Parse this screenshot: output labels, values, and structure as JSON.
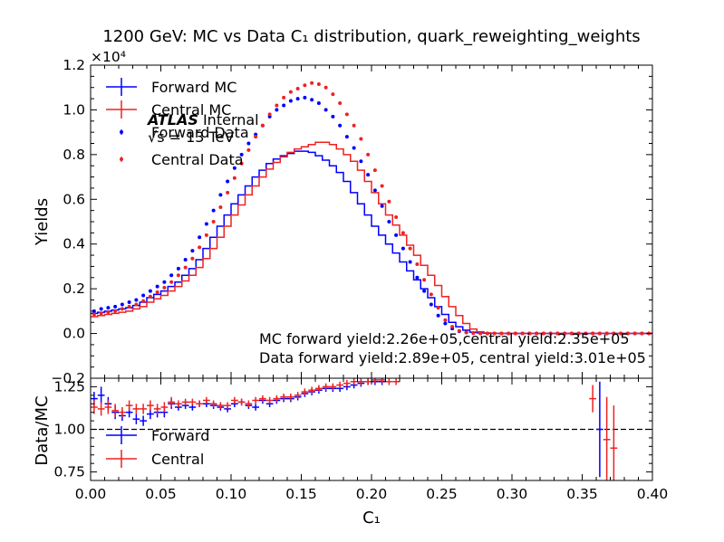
{
  "chart_data": [
    {
      "type": "line",
      "title": "1200 GeV: MC vs Data C₁ distribution, quark_reweighting_weights",
      "ylabel": "Yields",
      "y_offset_label": "×10⁴",
      "xlim": [
        0.0,
        0.4
      ],
      "ylim": [
        -2000,
        12000
      ],
      "bin_width": 0.005,
      "x_ticks": [
        "0.00",
        "0.05",
        "0.10",
        "0.15",
        "0.20",
        "0.25",
        "0.30",
        "0.35",
        "0.40"
      ],
      "y_ticks": [
        "−0.2",
        "0.0",
        "0.2",
        "0.4",
        "0.6",
        "0.8",
        "1.0",
        "1.2"
      ],
      "y_tick_values": [
        -2000,
        0,
        2000,
        4000,
        6000,
        8000,
        10000,
        12000
      ],
      "annotations": {
        "atlas_bold": "ATLAS",
        "atlas_rest": " Internal",
        "energy": "√s = 13 TeV",
        "mc_yield": "MC forward yield:2.26e+05,central yield:2.35e+05",
        "data_yield": "Data forward yield:2.89e+05, central yield:3.01e+05"
      },
      "legend_position": "upper left",
      "series": [
        {
          "name": "Forward MC",
          "style": "step",
          "color": "#0000ff",
          "values": [
            900,
            950,
            1000,
            1050,
            1100,
            1150,
            1250,
            1400,
            1600,
            1750,
            1900,
            2100,
            2300,
            2600,
            2900,
            3300,
            3800,
            4300,
            4800,
            5300,
            5800,
            6200,
            6600,
            7000,
            7300,
            7600,
            7800,
            7950,
            8050,
            8150,
            8150,
            8100,
            7950,
            7750,
            7500,
            7200,
            6800,
            6300,
            5800,
            5300,
            4800,
            4400,
            4000,
            3600,
            3200,
            2800,
            2400,
            2000,
            1600,
            1200,
            850,
            500,
            300,
            150,
            60,
            30,
            15,
            8,
            5,
            3,
            2,
            2,
            2,
            2,
            2,
            2,
            2,
            2,
            2,
            2,
            2,
            2,
            2,
            2,
            2,
            2,
            2,
            2,
            2,
            2
          ]
        },
        {
          "name": "Central MC",
          "style": "step",
          "color": "#ee2222",
          "values": [
            750,
            800,
            850,
            900,
            950,
            1000,
            1100,
            1200,
            1400,
            1550,
            1700,
            1900,
            2100,
            2350,
            2600,
            2950,
            3350,
            3800,
            4300,
            4800,
            5300,
            5750,
            6200,
            6600,
            7000,
            7350,
            7650,
            7900,
            8100,
            8250,
            8350,
            8450,
            8550,
            8550,
            8450,
            8250,
            8000,
            7700,
            7300,
            6800,
            6300,
            5800,
            5300,
            4850,
            4400,
            3950,
            3500,
            3050,
            2600,
            2150,
            1650,
            1200,
            800,
            450,
            200,
            80,
            30,
            15,
            8,
            5,
            3,
            3,
            3,
            3,
            3,
            3,
            3,
            3,
            3,
            3,
            3,
            3,
            3,
            3,
            3,
            3,
            3,
            3,
            3,
            3
          ]
        },
        {
          "name": "Forward Data",
          "style": "points",
          "color": "#0000ff",
          "values": [
            1000,
            1100,
            1150,
            1200,
            1300,
            1400,
            1500,
            1700,
            1900,
            2100,
            2300,
            2600,
            2900,
            3300,
            3700,
            4300,
            4900,
            5500,
            6200,
            6800,
            7400,
            8000,
            8500,
            8900,
            9300,
            9700,
            10000,
            10200,
            10400,
            10500,
            10550,
            10450,
            10300,
            10000,
            9700,
            9300,
            8800,
            8300,
            7700,
            7100,
            6400,
            5700,
            5000,
            4400,
            3800,
            3200,
            2500,
            1900,
            1300,
            800,
            450,
            220,
            100,
            50,
            20,
            10,
            5,
            3,
            2,
            1,
            1,
            1,
            1,
            1,
            1,
            1,
            1,
            1,
            1,
            1,
            1,
            1,
            1,
            1,
            1,
            1,
            1,
            1,
            1,
            1
          ]
        },
        {
          "name": "Central Data",
          "style": "points",
          "color": "#ee2222",
          "values": [
            850,
            900,
            950,
            1000,
            1100,
            1200,
            1300,
            1450,
            1650,
            1850,
            2050,
            2300,
            2600,
            2950,
            3350,
            3850,
            4400,
            5000,
            5650,
            6300,
            6950,
            7600,
            8200,
            8800,
            9300,
            9800,
            10200,
            10550,
            10800,
            10950,
            11100,
            11200,
            11150,
            11000,
            10700,
            10300,
            9800,
            9300,
            8700,
            8000,
            7300,
            6600,
            5900,
            5200,
            4500,
            3800,
            3100,
            2400,
            1750,
            1150,
            600,
            300,
            120,
            50,
            20,
            10,
            5,
            3,
            2,
            1,
            1,
            1,
            1,
            1,
            1,
            1,
            1,
            1,
            1,
            1,
            1,
            1,
            1,
            1,
            1,
            1,
            1,
            1,
            1,
            1
          ]
        }
      ]
    },
    {
      "type": "line",
      "xlabel": "C₁",
      "ylabel": "Data/MC",
      "xlim": [
        0.0,
        0.4
      ],
      "ylim": [
        0.7,
        1.3
      ],
      "reference_line": 1.0,
      "x_ticks": [
        "0.00",
        "0.05",
        "0.10",
        "0.15",
        "0.20",
        "0.25",
        "0.30",
        "0.35",
        "0.40"
      ],
      "y_ticks": [
        "0.75",
        "1.00",
        "1.25"
      ],
      "y_tick_values": [
        0.75,
        1.0,
        1.25
      ],
      "legend_position": "lower left",
      "series": [
        {
          "name": "Forward",
          "color": "#0000ff",
          "bin_centers": [
            0.0025,
            0.0075,
            0.0125,
            0.0175,
            0.0225,
            0.0275,
            0.0325,
            0.0375,
            0.0425,
            0.0475,
            0.0525,
            0.0575,
            0.0625,
            0.0675,
            0.0725,
            0.0775,
            0.0825,
            0.0875,
            0.0925,
            0.0975,
            0.1025,
            0.1075,
            0.1125,
            0.1175,
            0.1225,
            0.1275,
            0.1325,
            0.1375,
            0.1425,
            0.1475,
            0.1525,
            0.1575,
            0.1625,
            0.1675,
            0.1725,
            0.1775,
            0.1825,
            0.1875,
            0.1925,
            0.1975,
            0.2025,
            0.2075,
            0.3625
          ],
          "values": [
            1.18,
            1.2,
            1.15,
            1.1,
            1.08,
            1.1,
            1.06,
            1.05,
            1.09,
            1.1,
            1.1,
            1.15,
            1.13,
            1.14,
            1.13,
            1.15,
            1.15,
            1.14,
            1.13,
            1.12,
            1.15,
            1.16,
            1.14,
            1.13,
            1.17,
            1.15,
            1.17,
            1.18,
            1.18,
            1.19,
            1.21,
            1.22,
            1.23,
            1.24,
            1.24,
            1.24,
            1.25,
            1.26,
            1.27,
            1.28,
            1.28,
            1.28,
            1.0
          ],
          "errors": [
            0.04,
            0.05,
            0.04,
            0.04,
            0.03,
            0.03,
            0.03,
            0.03,
            0.03,
            0.03,
            0.03,
            0.03,
            0.02,
            0.02,
            0.02,
            0.02,
            0.02,
            0.02,
            0.02,
            0.02,
            0.02,
            0.02,
            0.02,
            0.02,
            0.02,
            0.02,
            0.02,
            0.02,
            0.02,
            0.02,
            0.02,
            0.02,
            0.02,
            0.02,
            0.02,
            0.02,
            0.02,
            0.02,
            0.02,
            0.02,
            0.02,
            0.02,
            0.28
          ]
        },
        {
          "name": "Central",
          "color": "#ee2222",
          "bin_centers": [
            0.0025,
            0.0075,
            0.0125,
            0.0175,
            0.0225,
            0.0275,
            0.0325,
            0.0375,
            0.0425,
            0.0475,
            0.0525,
            0.0575,
            0.0625,
            0.0675,
            0.0725,
            0.0775,
            0.0825,
            0.0875,
            0.0925,
            0.0975,
            0.1025,
            0.1075,
            0.1125,
            0.1175,
            0.1225,
            0.1275,
            0.1325,
            0.1375,
            0.1425,
            0.1475,
            0.1525,
            0.1575,
            0.1625,
            0.1675,
            0.1725,
            0.1775,
            0.1825,
            0.1875,
            0.1925,
            0.1975,
            0.2025,
            0.2075,
            0.2125,
            0.2175,
            0.3575,
            0.3675,
            0.3725
          ],
          "values": [
            1.13,
            1.12,
            1.13,
            1.11,
            1.1,
            1.14,
            1.12,
            1.12,
            1.14,
            1.12,
            1.13,
            1.16,
            1.15,
            1.16,
            1.16,
            1.15,
            1.17,
            1.15,
            1.14,
            1.14,
            1.17,
            1.16,
            1.15,
            1.17,
            1.18,
            1.17,
            1.18,
            1.19,
            1.19,
            1.2,
            1.22,
            1.23,
            1.24,
            1.25,
            1.25,
            1.26,
            1.27,
            1.28,
            1.28,
            1.28,
            1.29,
            1.29,
            1.28,
            1.28,
            1.18,
            0.94,
            0.89
          ],
          "errors": [
            0.04,
            0.04,
            0.04,
            0.04,
            0.03,
            0.03,
            0.03,
            0.03,
            0.03,
            0.03,
            0.03,
            0.03,
            0.02,
            0.02,
            0.02,
            0.02,
            0.02,
            0.02,
            0.02,
            0.02,
            0.02,
            0.02,
            0.02,
            0.02,
            0.02,
            0.02,
            0.02,
            0.02,
            0.02,
            0.02,
            0.02,
            0.02,
            0.02,
            0.02,
            0.02,
            0.02,
            0.02,
            0.02,
            0.02,
            0.02,
            0.02,
            0.02,
            0.02,
            0.02,
            0.08,
            0.25,
            0.25
          ]
        }
      ]
    }
  ]
}
